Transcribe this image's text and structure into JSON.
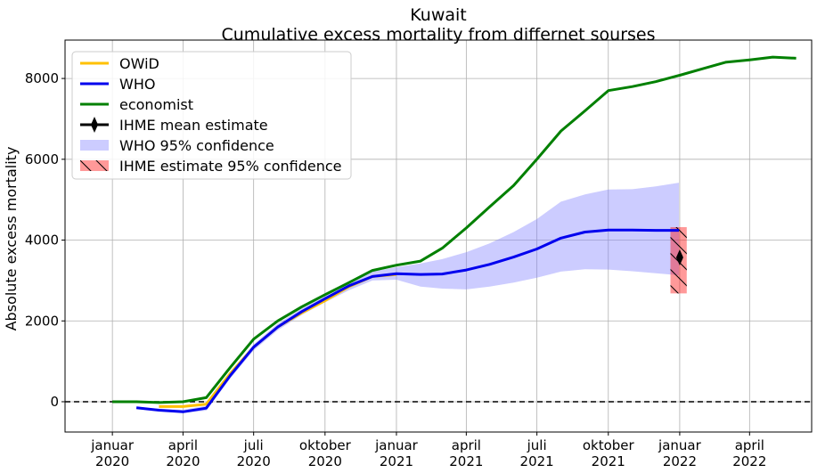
{
  "chart_data": {
    "type": "line",
    "title": "Kuwait",
    "subtitle": "Cumulative excess mortality from differnet sourses",
    "xlabel": "",
    "ylabel": "Absolute excess mortality",
    "xlim": [
      "2019-11-01",
      "2022-06-20"
    ],
    "ylim": [
      -750,
      8950
    ],
    "grid": true,
    "legend_position": "top-left",
    "y_ticks": [
      0,
      2000,
      4000,
      6000,
      8000
    ],
    "y_tick_labels": [
      "0",
      "2000",
      "4000",
      "6000",
      "8000"
    ],
    "x_ticks": [
      {
        "date": "2020-01-01",
        "line1": "januar",
        "line2": "2020"
      },
      {
        "date": "2020-04-01",
        "line1": "april",
        "line2": "2020"
      },
      {
        "date": "2020-07-01",
        "line1": "juli",
        "line2": "2020"
      },
      {
        "date": "2020-10-01",
        "line1": "oktober",
        "line2": "2020"
      },
      {
        "date": "2021-01-01",
        "line1": "januar",
        "line2": "2021"
      },
      {
        "date": "2021-04-01",
        "line1": "april",
        "line2": "2021"
      },
      {
        "date": "2021-07-01",
        "line1": "juli",
        "line2": "2021"
      },
      {
        "date": "2021-10-01",
        "line1": "oktober",
        "line2": "2021"
      },
      {
        "date": "2022-01-01",
        "line1": "januar",
        "line2": "2022"
      },
      {
        "date": "2022-04-01",
        "line1": "april",
        "line2": "2022"
      }
    ],
    "reference_line": {
      "y": 0,
      "style": "dashed",
      "color": "#000000"
    },
    "series": [
      {
        "name": "OWiD",
        "color": "#ffc000",
        "x": [
          "2020-03-01",
          "2020-04-01",
          "2020-05-01",
          "2020-06-01",
          "2020-07-01",
          "2020-08-01",
          "2020-09-01",
          "2020-10-01",
          "2020-11-01",
          "2020-12-01",
          "2021-01-01"
        ],
        "y": [
          -120,
          -120,
          -60,
          700,
          1350,
          1850,
          2200,
          2500,
          2850,
          3100,
          3150
        ]
      },
      {
        "name": "WHO",
        "color": "#0000ee",
        "x": [
          "2020-02-01",
          "2020-03-01",
          "2020-04-01",
          "2020-05-01",
          "2020-06-01",
          "2020-07-01",
          "2020-08-01",
          "2020-09-01",
          "2020-10-01",
          "2020-11-01",
          "2020-12-01",
          "2021-01-01",
          "2021-02-01",
          "2021-03-01",
          "2021-04-01",
          "2021-05-01",
          "2021-06-01",
          "2021-07-01",
          "2021-08-01",
          "2021-09-01",
          "2021-10-01",
          "2021-11-01",
          "2021-12-01",
          "2021-12-31"
        ],
        "y": [
          -150,
          -210,
          -250,
          -160,
          650,
          1350,
          1850,
          2230,
          2550,
          2870,
          3100,
          3170,
          3150,
          3160,
          3260,
          3400,
          3580,
          3780,
          4050,
          4200,
          4250,
          4250,
          4240,
          4240
        ]
      },
      {
        "name": "economist",
        "color": "#008000",
        "x": [
          "2020-01-01",
          "2020-02-01",
          "2020-03-01",
          "2020-04-01",
          "2020-05-01",
          "2020-06-01",
          "2020-07-01",
          "2020-08-01",
          "2020-09-01",
          "2020-10-01",
          "2020-11-01",
          "2020-12-01",
          "2021-01-01",
          "2021-02-01",
          "2021-03-01",
          "2021-04-01",
          "2021-05-01",
          "2021-06-01",
          "2021-07-01",
          "2021-08-01",
          "2021-09-01",
          "2021-10-01",
          "2021-11-01",
          "2021-12-01",
          "2022-01-01",
          "2022-02-01",
          "2022-03-01",
          "2022-04-01",
          "2022-05-01",
          "2022-05-31"
        ],
        "y": [
          0,
          0,
          -20,
          0,
          100,
          850,
          1550,
          2000,
          2350,
          2650,
          2950,
          3250,
          3380,
          3480,
          3800,
          4300,
          4820,
          5350,
          6000,
          6700,
          7200,
          7700,
          7800,
          7920,
          8080,
          8250,
          8400,
          8460,
          8530,
          8500
        ]
      },
      {
        "name": "IHME mean estimate",
        "color": "#000000",
        "marker": "thin_diamond",
        "x": [
          "2022-01-01"
        ],
        "y": [
          3570
        ]
      }
    ],
    "bands": [
      {
        "name": "WHO 95% confidence",
        "color": "#8080ff",
        "opacity": 0.4,
        "x": [
          "2020-02-01",
          "2020-03-01",
          "2020-04-01",
          "2020-05-01",
          "2020-06-01",
          "2020-07-01",
          "2020-08-01",
          "2020-09-01",
          "2020-10-01",
          "2020-11-01",
          "2020-12-01",
          "2021-01-01",
          "2021-02-01",
          "2021-03-01",
          "2021-04-01",
          "2021-05-01",
          "2021-06-01",
          "2021-07-01",
          "2021-08-01",
          "2021-09-01",
          "2021-10-01",
          "2021-11-01",
          "2021-12-01",
          "2021-12-31"
        ],
        "lower": [
          -140,
          -220,
          -280,
          -220,
          580,
          1270,
          1770,
          2150,
          2460,
          2760,
          3000,
          3020,
          2850,
          2800,
          2780,
          2850,
          2950,
          3070,
          3220,
          3280,
          3270,
          3230,
          3180,
          3130
        ],
        "upper": [
          -140,
          -170,
          -200,
          -100,
          720,
          1420,
          1930,
          2310,
          2630,
          2970,
          3220,
          3330,
          3420,
          3530,
          3700,
          3920,
          4200,
          4520,
          4950,
          5130,
          5250,
          5260,
          5330,
          5420
        ]
      },
      {
        "name": " IHME estimate 95% confidence",
        "color": "#ff0000",
        "opacity": 0.4,
        "hatch": "\\",
        "x": [
          "2021-12-20",
          "2022-01-10"
        ],
        "lower": [
          2680,
          2680
        ],
        "upper": [
          4320,
          4320
        ]
      }
    ],
    "legend": [
      {
        "label": "OWiD",
        "kind": "line",
        "color": "#ffc000"
      },
      {
        "label": "WHO",
        "kind": "line",
        "color": "#0000ee"
      },
      {
        "label": "economist",
        "kind": "line",
        "color": "#008000"
      },
      {
        "label": "IHME mean estimate",
        "kind": "marker",
        "color": "#000000"
      },
      {
        "label": "WHO 95% confidence",
        "kind": "patch",
        "color": "#8080ff"
      },
      {
        "label": " IHME estimate 95% confidence",
        "kind": "hatched",
        "color": "#ff0000"
      }
    ]
  }
}
